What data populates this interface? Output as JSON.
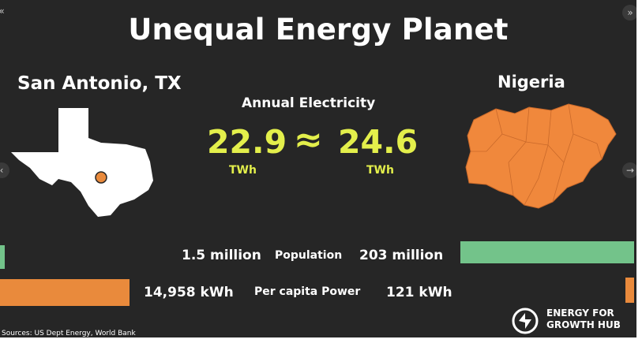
{
  "title": "Unequal Energy Planet",
  "left_place": "San Antonio, TX",
  "right_place": "Nigeria",
  "annual_label": "Annual Electricity",
  "left_value": "22.9",
  "approx_symbol": "≈",
  "right_value": "24.6",
  "unit_left": "TWh",
  "unit_right": "TWh",
  "population": {
    "left": "1.5 million",
    "label": "Population",
    "right": "203 million",
    "left_fraction": 0.0074,
    "right_fraction": 1.0
  },
  "per_capita": {
    "left": "14,958 kWh",
    "label": "Per capita Power",
    "right": "121 kWh",
    "left_fraction": 1.0,
    "right_fraction": 0.0081
  },
  "sources": "Sources: US Dept Energy, World Bank",
  "logo": {
    "line1": "ENERGY FOR",
    "line2": "GROWTH HUB"
  },
  "nav": {
    "prev_icon": "‹",
    "next_icon": "→",
    "top_left": "«",
    "top_right": "»"
  },
  "colors": {
    "background": "#262626",
    "accent_yellow": "#e3ef4b",
    "population_green": "#73c38a",
    "power_orange": "#e98a3c",
    "map_orange": "#f0883c"
  }
}
